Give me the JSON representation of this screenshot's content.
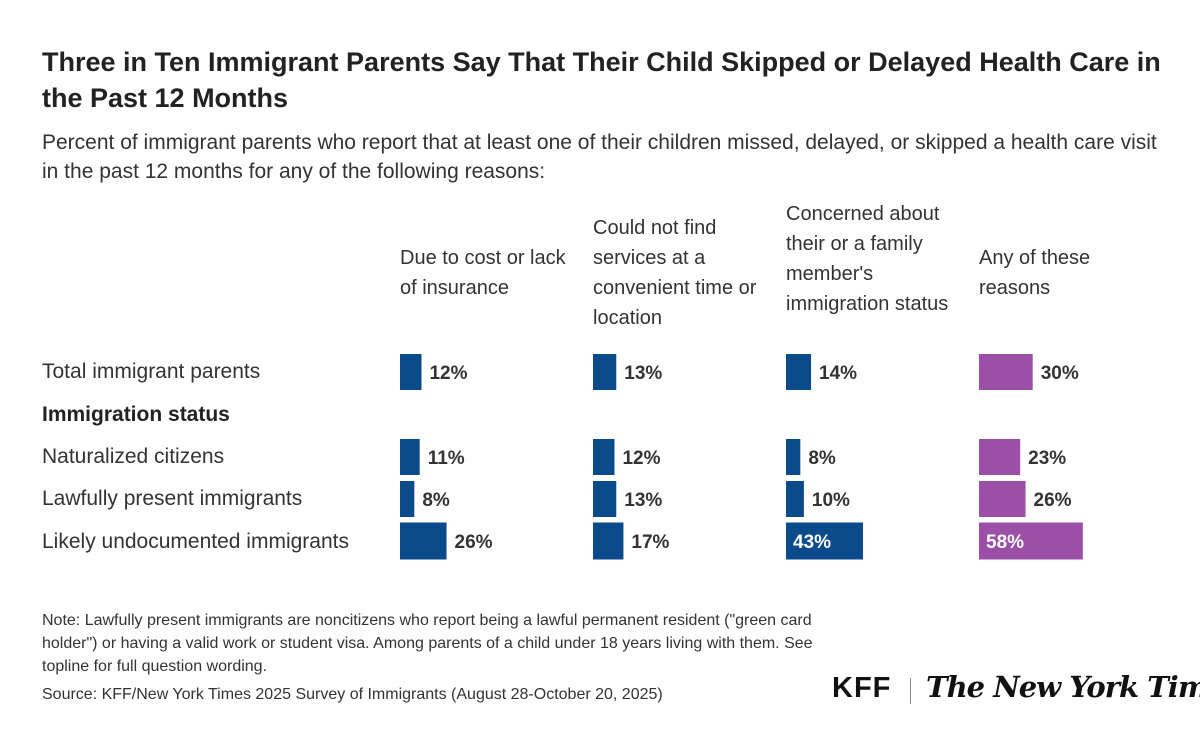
{
  "title": "Three in Ten Immigrant Parents Say That Their Child Skipped or Delayed Health Care in the Past 12 Months",
  "subtitle": "Percent of immigrant parents who report that at least one of their children missed, delayed, or skipped a health care visit in the past 12 months for any of the following reasons:",
  "columns": [
    "Due to cost or lack of insurance",
    "Could not find services at a convenient time or location",
    "Concerned about their or a family member's immigration status",
    "Any of these reasons"
  ],
  "rows": [
    {
      "label": "Total immigrant parents"
    },
    {
      "label": "Immigration status"
    },
    {
      "label": "Naturalized citizens"
    },
    {
      "label": "Lawfully present immigrants"
    },
    {
      "label": "Likely undocumented immigrants"
    }
  ],
  "colors": {
    "blue": "#0b4a8b",
    "purple": "#9b4fa6"
  },
  "chart_data": {
    "type": "bar",
    "orientation": "horizontal",
    "categories": [
      "Total immigrant parents",
      "Naturalized citizens",
      "Lawfully present immigrants",
      "Likely undocumented immigrants"
    ],
    "series": [
      {
        "name": "Due to cost or lack of insurance",
        "values": [
          12,
          11,
          8,
          26
        ],
        "labels": [
          "12%",
          "11%",
          "8%",
          "26%"
        ],
        "color": "#0b4a8b"
      },
      {
        "name": "Could not find services at a convenient time or location",
        "values": [
          13,
          12,
          13,
          17
        ],
        "labels": [
          "13%",
          "12%",
          "13%",
          "17%"
        ],
        "color": "#0b4a8b"
      },
      {
        "name": "Concerned about their or a family member's immigration status",
        "values": [
          14,
          8,
          10,
          43
        ],
        "labels": [
          "14%",
          "8%",
          "10%",
          "43%"
        ],
        "color": "#0b4a8b"
      },
      {
        "name": "Any of these reasons",
        "values": [
          30,
          23,
          26,
          58
        ],
        "labels": [
          "30%",
          "23%",
          "26%",
          "58%"
        ],
        "color": "#9b4fa6"
      }
    ],
    "unit": "%"
  },
  "note": "Note: Lawfully present immigrants are noncitizens who report being a lawful permanent resident (\"green card holder\") or having a valid work or student visa. Among parents of a child under 18 years living with them. See topline for full question wording.",
  "source": "Source: KFF/New York Times 2025 Survey of Immigrants (August 28-October 20, 2025)",
  "logos": {
    "kff": "KFF",
    "nyt": "The New York Times"
  }
}
